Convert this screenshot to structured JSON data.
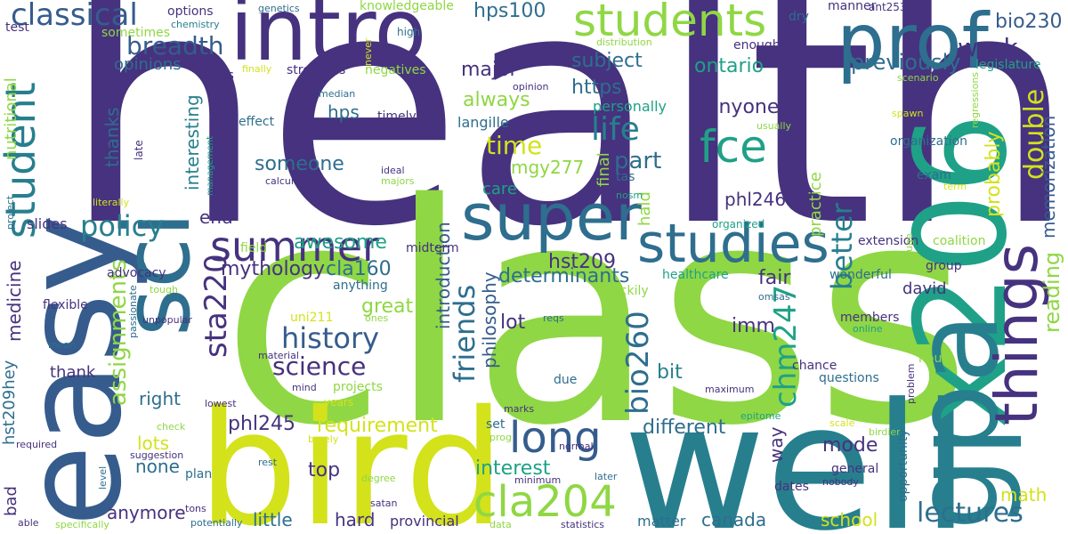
{
  "words": [
    {
      "text": "health",
      "color": "#46327e"
    },
    {
      "text": "class",
      "color": "#8fd744"
    },
    {
      "text": "bird",
      "color": "#d3e21b"
    },
    {
      "text": "well",
      "color": "#277f8e"
    },
    {
      "text": "easy",
      "color": "#365c8d"
    },
    {
      "text": "x206",
      "color": "#1fa187"
    },
    {
      "text": "gpa",
      "color": "#277f8e"
    },
    {
      "text": "sci",
      "color": "#2e6e8e"
    },
    {
      "text": "intro",
      "color": "#46327e"
    },
    {
      "text": "prof",
      "color": "#2e6e8e"
    },
    {
      "text": "super",
      "color": "#2e6e8e"
    },
    {
      "text": "studies",
      "color": "#2e6e8e"
    },
    {
      "text": "things",
      "color": "#46327e"
    },
    {
      "text": "students",
      "color": "#8fd744"
    },
    {
      "text": "student",
      "color": "#277f8e"
    },
    {
      "text": "summer",
      "color": "#46327e"
    },
    {
      "text": "classical",
      "color": "#365c8d"
    },
    {
      "text": "fce",
      "color": "#1fa187"
    },
    {
      "text": "long",
      "color": "#365c8d"
    },
    {
      "text": "cla204",
      "color": "#8fd744"
    },
    {
      "text": "lectures",
      "color": "#2e6e8e"
    },
    {
      "text": "life",
      "color": "#277f8e"
    },
    {
      "text": "policy",
      "color": "#277f8e"
    },
    {
      "text": "breadth",
      "color": "#365c8d"
    },
    {
      "text": "history",
      "color": "#365c8d"
    },
    {
      "text": "science",
      "color": "#46327e"
    },
    {
      "text": "sta220",
      "color": "#46327e"
    },
    {
      "text": "chm247",
      "color": "#1fa187"
    },
    {
      "text": "bio260",
      "color": "#2e6e8e"
    },
    {
      "text": "friends",
      "color": "#2e6e8e"
    },
    {
      "text": "double",
      "color": "#d3e21b"
    },
    {
      "text": "better",
      "color": "#277f8e"
    },
    {
      "text": "time",
      "color": "#d3e21b"
    },
    {
      "text": "part",
      "color": "#2e6e8e"
    },
    {
      "text": "work",
      "color": "#46327e"
    },
    {
      "text": "previously",
      "color": "#2e6e8e"
    },
    {
      "text": "hps100",
      "color": "#2e6e8e"
    },
    {
      "text": "bio230",
      "color": "#365c8d"
    },
    {
      "text": "ontario",
      "color": "#1fa187"
    },
    {
      "text": "major",
      "color": "#46327e"
    },
    {
      "text": "subject",
      "color": "#2e6e8e"
    },
    {
      "text": "https",
      "color": "#2e6e8e"
    },
    {
      "text": "always",
      "color": "#8fd744"
    },
    {
      "text": "anyone",
      "color": "#46327e"
    },
    {
      "text": "reading",
      "color": "#8fd744"
    },
    {
      "text": "memorization",
      "color": "#365c8d"
    },
    {
      "text": "probably",
      "color": "#d3e21b"
    },
    {
      "text": "assignments",
      "color": "#8fd744"
    },
    {
      "text": "someone",
      "color": "#2e6e8e"
    },
    {
      "text": "awesome",
      "color": "#1fa187"
    },
    {
      "text": "mythology",
      "color": "#46327e"
    },
    {
      "text": "cla160",
      "color": "#2e6e8e"
    },
    {
      "text": "hst209",
      "color": "#46327e"
    },
    {
      "text": "determinants",
      "color": "#2e6e8e"
    },
    {
      "text": "philosophy",
      "color": "#365c8d"
    },
    {
      "text": "introduction",
      "color": "#365c8d"
    },
    {
      "text": "great",
      "color": "#8fd744"
    },
    {
      "text": "lot",
      "color": "#46327e"
    },
    {
      "text": "imm",
      "color": "#46327e"
    },
    {
      "text": "fair",
      "color": "#46327e"
    },
    {
      "text": "david",
      "color": "#46327e"
    },
    {
      "text": "requirement",
      "color": "#d3e21b"
    },
    {
      "text": "different",
      "color": "#2e6e8e"
    },
    {
      "text": "bit",
      "color": "#277f8e"
    },
    {
      "text": "phl245",
      "color": "#46327e"
    },
    {
      "text": "mode",
      "color": "#46327e"
    },
    {
      "text": "interest",
      "color": "#1fa187"
    },
    {
      "text": "top",
      "color": "#46327e"
    },
    {
      "text": "lots",
      "color": "#d3e21b"
    },
    {
      "text": "none",
      "color": "#2e6e8e"
    },
    {
      "text": "anymore",
      "color": "#46327e"
    },
    {
      "text": "little",
      "color": "#2e6e8e"
    },
    {
      "text": "hard",
      "color": "#46327e"
    },
    {
      "text": "provincial",
      "color": "#46327e"
    },
    {
      "text": "school",
      "color": "#d3e21b"
    },
    {
      "text": "canada",
      "color": "#2e6e8e"
    },
    {
      "text": "matter",
      "color": "#2e6e8e"
    },
    {
      "text": "math",
      "color": "#d3e21b"
    },
    {
      "text": "way",
      "color": "#46327e"
    },
    {
      "text": "right",
      "color": "#2e6e8e"
    },
    {
      "text": "thank",
      "color": "#46327e"
    },
    {
      "text": "medicine",
      "color": "#46327e"
    },
    {
      "text": "hst209hey",
      "color": "#2e6e8e"
    },
    {
      "text": "bad",
      "color": "#46327e"
    },
    {
      "text": "nutritional",
      "color": "#8fd744"
    },
    {
      "text": "thanks",
      "color": "#2e6e8e"
    },
    {
      "text": "interesting",
      "color": "#277f8e"
    },
    {
      "text": "end",
      "color": "#46327e"
    },
    {
      "text": "slides",
      "color": "#46327e"
    },
    {
      "text": "opinions",
      "color": "#2e6e8e"
    },
    {
      "text": "mgy277",
      "color": "#8fd744"
    },
    {
      "text": "care",
      "color": "#1fa187"
    },
    {
      "text": "phl246",
      "color": "#46327e"
    },
    {
      "text": "practice",
      "color": "#8fd744"
    },
    {
      "text": "final",
      "color": "#8fd744"
    },
    {
      "text": "hald",
      "color": "#8fd744"
    },
    {
      "text": "personally",
      "color": "#1fa187"
    },
    {
      "text": "langille",
      "color": "#2e6e8e"
    },
    {
      "text": "hps",
      "color": "#2e6e8e"
    },
    {
      "text": "strengths",
      "color": "#46327e"
    },
    {
      "text": "negatives",
      "color": "#8fd744"
    },
    {
      "text": "timely",
      "color": "#46327e"
    },
    {
      "text": "effect",
      "color": "#2e6e8e"
    },
    {
      "text": "test",
      "color": "#46327e"
    },
    {
      "text": "options",
      "color": "#46327e"
    },
    {
      "text": "sometimes",
      "color": "#8fd744"
    },
    {
      "text": "chemistry",
      "color": "#277f8e"
    },
    {
      "text": "genetics",
      "color": "#2e6e8e"
    },
    {
      "text": "knowledgeable",
      "color": "#8fd744"
    },
    {
      "text": "never",
      "color": "#d3e21b"
    },
    {
      "text": "high",
      "color": "#2e6e8e"
    },
    {
      "text": "distribution",
      "color": "#8fd744"
    },
    {
      "text": "dry",
      "color": "#2e6e8e"
    },
    {
      "text": "manner",
      "color": "#46327e"
    },
    {
      "text": "ant253",
      "color": "#46327e"
    },
    {
      "text": "enough",
      "color": "#46327e"
    },
    {
      "text": "legislature",
      "color": "#1fa187"
    },
    {
      "text": "regressions",
      "color": "#8fd744"
    },
    {
      "text": "scenario",
      "color": "#8fd744"
    },
    {
      "text": "finally",
      "color": "#d3e21b"
    },
    {
      "text": "times",
      "color": "#46327e"
    },
    {
      "text": "opinion",
      "color": "#46327e"
    },
    {
      "text": "median",
      "color": "#2e6e8e"
    },
    {
      "text": "upper",
      "color": "#46327e"
    },
    {
      "text": "late",
      "color": "#46327e"
    },
    {
      "text": "management",
      "color": "#1fa187"
    },
    {
      "text": "usually",
      "color": "#8fd744"
    },
    {
      "text": "spawn",
      "color": "#d3e21b"
    },
    {
      "text": "organization",
      "color": "#2e6e8e"
    },
    {
      "text": "exam",
      "color": "#2e6e8e"
    },
    {
      "text": "term",
      "color": "#d3e21b"
    },
    {
      "text": "tas",
      "color": "#2e6e8e"
    },
    {
      "text": "ideal",
      "color": "#46327e"
    },
    {
      "text": "majors",
      "color": "#8fd744"
    },
    {
      "text": "calculation",
      "color": "#46327e"
    },
    {
      "text": "literally",
      "color": "#d3e21b"
    },
    {
      "text": "nosm",
      "color": "#1fa187"
    },
    {
      "text": "organized",
      "color": "#1fa187"
    },
    {
      "text": "extension",
      "color": "#46327e"
    },
    {
      "text": "coalition",
      "color": "#8fd744"
    },
    {
      "text": "huge",
      "color": "#8fd744"
    },
    {
      "text": "group",
      "color": "#46327e"
    },
    {
      "text": "field",
      "color": "#8fd744"
    },
    {
      "text": "midterm",
      "color": "#46327e"
    },
    {
      "text": "project",
      "color": "#2e6e8e"
    },
    {
      "text": "advocacy",
      "color": "#46327e"
    },
    {
      "text": "anything",
      "color": "#2e6e8e"
    },
    {
      "text": "healthcare",
      "color": "#1fa187"
    },
    {
      "text": "wonderful",
      "color": "#2e6e8e"
    },
    {
      "text": "tough",
      "color": "#8fd744"
    },
    {
      "text": "passionate",
      "color": "#2e6e8e"
    },
    {
      "text": "flexible",
      "color": "#46327e"
    },
    {
      "text": "luckily",
      "color": "#8fd744"
    },
    {
      "text": "omsas",
      "color": "#2e6e8e"
    },
    {
      "text": "uni211",
      "color": "#d3e21b"
    },
    {
      "text": "ones",
      "color": "#8fd744"
    },
    {
      "text": "reqs",
      "color": "#2e6e8e"
    },
    {
      "text": "members",
      "color": "#46327e"
    },
    {
      "text": "unpopular",
      "color": "#46327e"
    },
    {
      "text": "online",
      "color": "#1fa187"
    },
    {
      "text": "material",
      "color": "#46327e"
    },
    {
      "text": "mean",
      "color": "#2e6e8e"
    },
    {
      "text": "hours",
      "color": "#8fd744"
    },
    {
      "text": "problem",
      "color": "#46327e"
    },
    {
      "text": "chance",
      "color": "#46327e"
    },
    {
      "text": "questions",
      "color": "#2e6e8e"
    },
    {
      "text": "projects",
      "color": "#8fd744"
    },
    {
      "text": "mind",
      "color": "#46327e"
    },
    {
      "text": "due",
      "color": "#2e6e8e"
    },
    {
      "text": "maximum",
      "color": "#46327e"
    },
    {
      "text": "lowest",
      "color": "#46327e"
    },
    {
      "text": "years",
      "color": "#d3e21b"
    },
    {
      "text": "marks",
      "color": "#46327e"
    },
    {
      "text": "epitome",
      "color": "#1fa187"
    },
    {
      "text": "scale",
      "color": "#d3e21b"
    },
    {
      "text": "birdier",
      "color": "#8fd744"
    },
    {
      "text": "opportunity",
      "color": "#2e6e8e"
    },
    {
      "text": "check",
      "color": "#8fd744"
    },
    {
      "text": "barely",
      "color": "#d3e21b"
    },
    {
      "text": "set",
      "color": "#2e6e8e"
    },
    {
      "text": "prog",
      "color": "#8fd744"
    },
    {
      "text": "normal",
      "color": "#46327e"
    },
    {
      "text": "general",
      "color": "#46327e"
    },
    {
      "text": "required",
      "color": "#46327e"
    },
    {
      "text": "suggestion",
      "color": "#46327e"
    },
    {
      "text": "rest",
      "color": "#2e6e8e"
    },
    {
      "text": "dates",
      "color": "#46327e"
    },
    {
      "text": "nobody",
      "color": "#46327e"
    },
    {
      "text": "level",
      "color": "#2e6e8e"
    },
    {
      "text": "plan",
      "color": "#2e6e8e"
    },
    {
      "text": "degree",
      "color": "#8fd744"
    },
    {
      "text": "minimum",
      "color": "#46327e"
    },
    {
      "text": "later",
      "color": "#2e6e8e"
    },
    {
      "text": "able",
      "color": "#46327e"
    },
    {
      "text": "specifically",
      "color": "#8fd744"
    },
    {
      "text": "potentially",
      "color": "#2e6e8e"
    },
    {
      "text": "tons",
      "color": "#46327e"
    },
    {
      "text": "satan",
      "color": "#46327e"
    },
    {
      "text": "data",
      "color": "#8fd744"
    },
    {
      "text": "statistics",
      "color": "#46327e"
    }
  ]
}
